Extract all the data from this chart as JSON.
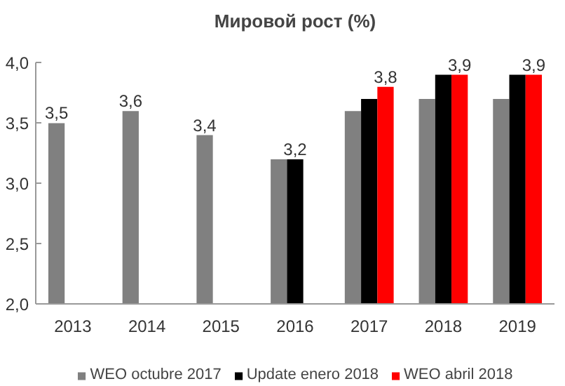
{
  "chart_data": {
    "type": "bar",
    "title": "Мировой рост (%)",
    "categories": [
      "2013",
      "2014",
      "2015",
      "2016",
      "2017",
      "2018",
      "2019"
    ],
    "series": [
      {
        "name": "WEO octubre 2017",
        "color": "#808080",
        "values": [
          3.5,
          3.6,
          3.4,
          3.2,
          3.6,
          3.7,
          3.7
        ],
        "value_labels": [
          "3,5",
          "3,6",
          "3,4",
          null,
          null,
          null,
          null
        ]
      },
      {
        "name": "Update enero 2018",
        "color": "#000000",
        "values": [
          null,
          null,
          null,
          3.2,
          3.7,
          3.9,
          3.9
        ],
        "value_labels": [
          null,
          null,
          null,
          "3,2",
          null,
          null,
          null
        ]
      },
      {
        "name": "WEO abril 2018",
        "color": "#ff0000",
        "values": [
          null,
          null,
          null,
          null,
          3.8,
          3.9,
          3.9
        ],
        "value_labels": [
          null,
          null,
          null,
          null,
          "3,8",
          "3,9",
          "3,9"
        ]
      }
    ],
    "ylim": [
      2.0,
      4.0
    ],
    "yticks": [
      {
        "value": 2.0,
        "label": "2,0"
      },
      {
        "value": 2.5,
        "label": "2,5"
      },
      {
        "value": 3.0,
        "label": "3,0"
      },
      {
        "value": 3.5,
        "label": "3,5"
      },
      {
        "value": 4.0,
        "label": "4,0"
      }
    ],
    "grid": false,
    "legend": "bottom"
  }
}
